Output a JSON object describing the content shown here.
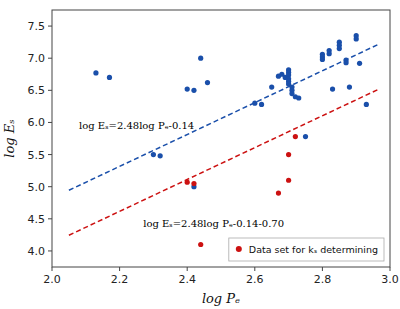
{
  "chart_data": {
    "type": "scatter",
    "x_label": "log Pₑ",
    "y_label": "log Eₛ",
    "xlim": [
      2.0,
      3.0
    ],
    "ylim": [
      3.75,
      7.75
    ],
    "xticks": [
      {
        "value": 2.0,
        "label": "2.0"
      },
      2.2,
      2.4,
      2.6,
      2.8,
      {
        "value": 3.0,
        "label": "3.0"
      }
    ],
    "yticks": [
      {
        "value": 4.0,
        "label": "4.0"
      },
      4.5,
      {
        "value": 5.0,
        "label": "5.0"
      },
      5.5,
      {
        "value": 6.0,
        "label": "6.0"
      },
      6.5,
      {
        "value": 7.0,
        "label": "7.0"
      },
      7.5
    ],
    "grid": false,
    "legend": "lower right",
    "series": [
      {
        "type": "scatter",
        "color": "#1a4faa",
        "marker": "circle",
        "x": [
          2.13,
          2.17,
          2.3,
          2.32,
          2.4,
          2.42,
          2.42,
          2.44,
          2.46,
          2.6,
          2.62,
          2.65,
          2.67,
          2.68,
          2.69,
          2.7,
          2.7,
          2.7,
          2.7,
          2.7,
          2.7,
          2.71,
          2.71,
          2.71,
          2.72,
          2.73,
          2.75,
          2.8,
          2.8,
          2.8,
          2.82,
          2.82,
          2.83,
          2.85,
          2.85,
          2.85,
          2.87,
          2.87,
          2.88,
          2.9,
          2.9,
          2.91,
          2.93
        ],
        "values": [
          6.77,
          6.7,
          5.5,
          5.48,
          6.52,
          6.5,
          5.0,
          7.0,
          6.62,
          6.3,
          6.28,
          6.55,
          6.72,
          6.75,
          6.7,
          6.82,
          6.78,
          6.74,
          6.68,
          6.64,
          6.6,
          6.55,
          6.5,
          6.45,
          6.4,
          6.38,
          5.78,
          7.06,
          7.02,
          6.98,
          7.12,
          7.07,
          6.52,
          7.25,
          7.2,
          7.15,
          6.97,
          6.93,
          6.55,
          7.35,
          7.3,
          6.92,
          6.28
        ]
      },
      {
        "type": "scatter",
        "name": "Data set for kₛ determining",
        "color": "#cc1111",
        "marker": "circle",
        "x": [
          2.4,
          2.42,
          2.44,
          2.67,
          2.7,
          2.7,
          2.72
        ],
        "values": [
          5.07,
          5.05,
          4.1,
          4.9,
          5.1,
          5.5,
          5.78
        ]
      },
      {
        "type": "line",
        "color": "#1a4faa",
        "line_style": "dashed",
        "x": [
          2.05,
          2.97
        ],
        "values": [
          4.944,
          7.2256
        ]
      },
      {
        "type": "line",
        "color": "#cc1111",
        "line_style": "dashed",
        "x": [
          2.05,
          2.97
        ],
        "values": [
          4.244,
          6.5256
        ]
      }
    ],
    "annotations": [
      {
        "text": "log Eₛ=2.48log Pₑ-0.14",
        "x": 2.08,
        "y": 5.9
      },
      {
        "text": "log Eₛ=2.48log Pₑ-0.14-0.70",
        "x": 2.27,
        "y": 4.38
      }
    ]
  }
}
